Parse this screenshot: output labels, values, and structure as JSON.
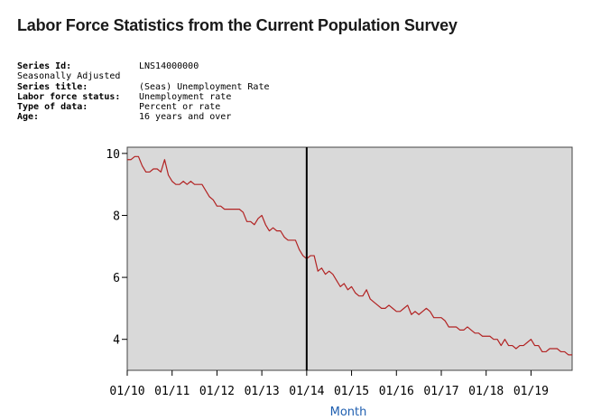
{
  "page": {
    "title": "Labor Force Statistics from the Current Population Survey"
  },
  "series_info": {
    "series_id_label": "Series Id:",
    "series_id": "LNS14000000",
    "adjustment": "Seasonally Adjusted",
    "series_title_label": "Series title:",
    "series_title": "(Seas) Unemployment Rate",
    "labor_force_status_label": "Labor force status:",
    "labor_force_status": "Unemployment rate",
    "type_of_data_label": "Type of data:",
    "type_of_data": "Percent or rate",
    "age_label": "Age:",
    "age": "16 years and over"
  },
  "colors": {
    "plot_bg": "#d9d9d9",
    "line": "#b22222",
    "marker_line": "#000000",
    "axis_title": "#1f5fb0"
  },
  "chart_data": {
    "type": "line",
    "title": "",
    "xlabel": "Month",
    "ylabel": "",
    "ylim": [
      3,
      10.2
    ],
    "yticks": [
      4,
      6,
      8,
      10
    ],
    "xlim": [
      2010.0,
      2019.917
    ],
    "xticks": [
      {
        "label": "01/10",
        "x": 2010
      },
      {
        "label": "01/11",
        "x": 2011
      },
      {
        "label": "01/12",
        "x": 2012
      },
      {
        "label": "01/13",
        "x": 2013
      },
      {
        "label": "01/14",
        "x": 2014
      },
      {
        "label": "01/15",
        "x": 2015
      },
      {
        "label": "01/16",
        "x": 2016
      },
      {
        "label": "01/17",
        "x": 2017
      },
      {
        "label": "01/18",
        "x": 2018
      },
      {
        "label": "01/19",
        "x": 2019
      }
    ],
    "vertical_marker": {
      "x": 2014,
      "label": "01/14"
    },
    "series": [
      {
        "name": "Unemployment Rate",
        "start": "2010-01",
        "values": [
          9.8,
          9.8,
          9.9,
          9.9,
          9.6,
          9.4,
          9.4,
          9.5,
          9.5,
          9.4,
          9.8,
          9.3,
          9.1,
          9.0,
          9.0,
          9.1,
          9.0,
          9.1,
          9.0,
          9.0,
          9.0,
          8.8,
          8.6,
          8.5,
          8.3,
          8.3,
          8.2,
          8.2,
          8.2,
          8.2,
          8.2,
          8.1,
          7.8,
          7.8,
          7.7,
          7.9,
          8.0,
          7.7,
          7.5,
          7.6,
          7.5,
          7.5,
          7.3,
          7.2,
          7.2,
          7.2,
          6.9,
          6.7,
          6.6,
          6.7,
          6.7,
          6.2,
          6.3,
          6.1,
          6.2,
          6.1,
          5.9,
          5.7,
          5.8,
          5.6,
          5.7,
          5.5,
          5.4,
          5.4,
          5.6,
          5.3,
          5.2,
          5.1,
          5.0,
          5.0,
          5.1,
          5.0,
          4.9,
          4.9,
          5.0,
          5.1,
          4.8,
          4.9,
          4.8,
          4.9,
          5.0,
          4.9,
          4.7,
          4.7,
          4.7,
          4.6,
          4.4,
          4.4,
          4.4,
          4.3,
          4.3,
          4.4,
          4.3,
          4.2,
          4.2,
          4.1,
          4.1,
          4.1,
          4.0,
          4.0,
          3.8,
          4.0,
          3.8,
          3.8,
          3.7,
          3.8,
          3.8,
          3.9,
          4.0,
          3.8,
          3.8,
          3.6,
          3.6,
          3.7,
          3.7,
          3.7,
          3.6,
          3.6,
          3.5,
          3.5
        ]
      }
    ]
  }
}
